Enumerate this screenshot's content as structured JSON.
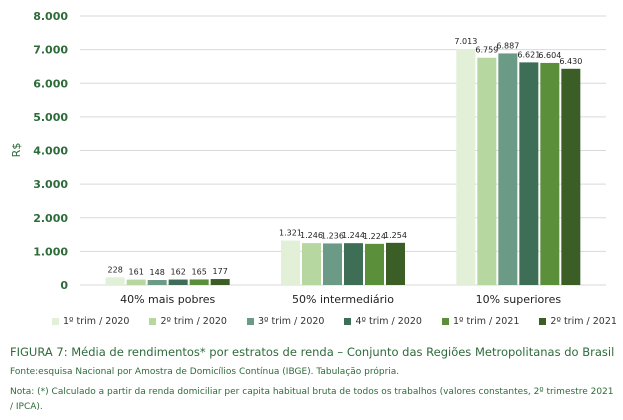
{
  "chart_data": {
    "type": "bar",
    "ylabel": "R$",
    "ylim": [
      0,
      8000
    ],
    "yticks": [
      "0",
      "1.000",
      "2.000",
      "3.000",
      "4.000",
      "5.000",
      "6.000",
      "7.000",
      "8.000"
    ],
    "categories": [
      "40% mais pobres",
      "50% intermediário",
      "10% superiores"
    ],
    "series": [
      {
        "name": "1º trim / 2020",
        "color": "#e3f0d8",
        "values": [
          228,
          1321,
          7013
        ],
        "labels": [
          "228",
          "1.321",
          "7.013"
        ]
      },
      {
        "name": "2º trim / 2020",
        "color": "#b7d7a0",
        "values": [
          161,
          1246,
          6759
        ],
        "labels": [
          "161",
          "1.246",
          "6.759"
        ]
      },
      {
        "name": "3º trim / 2020",
        "color": "#6b9a86",
        "values": [
          148,
          1236,
          6887
        ],
        "labels": [
          "148",
          "1.236",
          "6.887"
        ]
      },
      {
        "name": "4º trim / 2020",
        "color": "#3e6e55",
        "values": [
          162,
          1244,
          6621
        ],
        "labels": [
          "162",
          "1.244",
          "6.621"
        ]
      },
      {
        "name": "1º trim / 2021",
        "color": "#5b8f3a",
        "values": [
          165,
          1224,
          6604
        ],
        "labels": [
          "165",
          "1.224",
          "6.604"
        ]
      },
      {
        "name": "2º trim / 2021",
        "color": "#3a5e26",
        "values": [
          177,
          1254,
          6430
        ],
        "labels": [
          "177",
          "1.254",
          "6.430"
        ]
      }
    ],
    "grid": true,
    "legend_position": "bottom"
  },
  "caption": "FIGURA 7: Média de rendimentos* por estratos de renda – Conjunto das Regiões Metropolitanas do Brasil",
  "source": "Fonte:esquisa Nacional por Amostra de Domicílios Contínua (IBGE). Tabulação própria.",
  "note": "Nota: (*) Calculado a partir da renda domiciliar per capita habitual bruta de todos os trabalhos (valores constantes, 2º trimestre 2021 / IPCA)."
}
